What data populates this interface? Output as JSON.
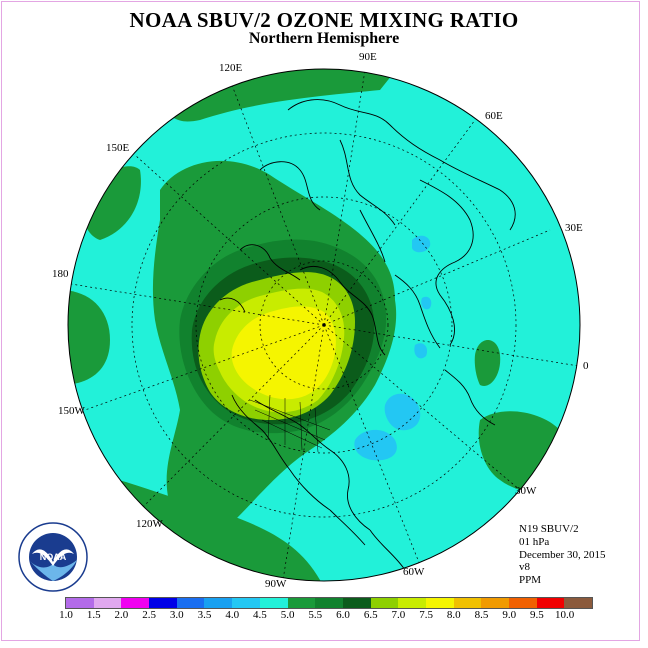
{
  "title": "NOAA SBUV/2 OZONE MIXING RATIO",
  "subtitle": "Northern Hemisphere",
  "longitude_labels": [
    "120E",
    "90E",
    "60E",
    "150E",
    "30E",
    "180",
    "0",
    "150W",
    "30W",
    "120W",
    "60W",
    "90W"
  ],
  "info": {
    "instrument": "N19 SBUV/2",
    "pressure": "01 hPa",
    "date": "December 30, 2015",
    "version": "v8",
    "units": "PPM"
  },
  "legend": {
    "colors": [
      "#b36be9",
      "#e0a8ef",
      "#f000f0",
      "#0000e8",
      "#1a6ef0",
      "#19a0f0",
      "#23c7f3",
      "#22f1d9",
      "#1a9a3a",
      "#11822e",
      "#0b5c1b",
      "#8ed000",
      "#c8ec00",
      "#f5f500",
      "#f0c000",
      "#f09a00",
      "#f06000",
      "#f00000",
      "#8b5a3c"
    ],
    "ticks": [
      "1.0",
      "1.5",
      "2.0",
      "2.5",
      "3.0",
      "3.5",
      "4.0",
      "4.5",
      "5.0",
      "5.5",
      "6.0",
      "6.5",
      "7.0",
      "7.5",
      "8.0",
      "8.5",
      "9.0",
      "9.5",
      "10.0"
    ]
  },
  "logo": {
    "text": "NOAA",
    "ring_text": "NATIONAL OCEANIC AND ATMOSPHERIC ADMINISTRATION U.S. DEPARTMENT OF COMMERCE"
  }
}
